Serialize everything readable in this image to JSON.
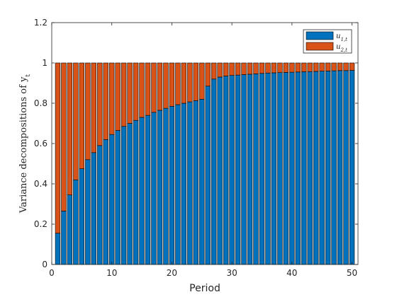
{
  "chart_data": {
    "type": "bar",
    "stacked": true,
    "title": "",
    "xlabel": "Period",
    "ylabel": "Variance decompositions of y_t",
    "xlim": [
      0,
      51
    ],
    "ylim": [
      0,
      1.2
    ],
    "xticks": [
      0,
      10,
      20,
      30,
      40,
      50
    ],
    "yticks": [
      0,
      0.2,
      0.4,
      0.6,
      0.8,
      1,
      1.2
    ],
    "grid": false,
    "legend_position": "top-right",
    "categories": [
      1,
      2,
      3,
      4,
      5,
      6,
      7,
      8,
      9,
      10,
      11,
      12,
      13,
      14,
      15,
      16,
      17,
      18,
      19,
      20,
      21,
      22,
      23,
      24,
      25,
      26,
      27,
      28,
      29,
      30,
      31,
      32,
      33,
      34,
      35,
      36,
      37,
      38,
      39,
      40,
      41,
      42,
      43,
      44,
      45,
      46,
      47,
      48,
      49,
      50
    ],
    "series": [
      {
        "name": "u_{1,t}",
        "color": "#0072BD",
        "values": [
          0.155,
          0.265,
          0.345,
          0.42,
          0.475,
          0.52,
          0.555,
          0.59,
          0.62,
          0.645,
          0.665,
          0.685,
          0.7,
          0.715,
          0.73,
          0.74,
          0.755,
          0.765,
          0.775,
          0.785,
          0.793,
          0.8,
          0.807,
          0.813,
          0.82,
          0.885,
          0.92,
          0.93,
          0.935,
          0.938,
          0.94,
          0.942,
          0.944,
          0.946,
          0.948,
          0.95,
          0.951,
          0.952,
          0.953,
          0.954,
          0.955,
          0.956,
          0.957,
          0.958,
          0.959,
          0.96,
          0.961,
          0.962,
          0.962,
          0.963
        ]
      },
      {
        "name": "u_{2,t}",
        "color": "#D95319",
        "values": [
          0.845,
          0.735,
          0.655,
          0.58,
          0.525,
          0.48,
          0.445,
          0.41,
          0.38,
          0.355,
          0.335,
          0.315,
          0.3,
          0.285,
          0.27,
          0.26,
          0.245,
          0.235,
          0.225,
          0.215,
          0.207,
          0.2,
          0.193,
          0.187,
          0.18,
          0.115,
          0.08,
          0.07,
          0.065,
          0.062,
          0.06,
          0.058,
          0.056,
          0.054,
          0.052,
          0.05,
          0.049,
          0.048,
          0.047,
          0.046,
          0.045,
          0.044,
          0.043,
          0.042,
          0.041,
          0.04,
          0.039,
          0.038,
          0.038,
          0.037
        ]
      }
    ]
  }
}
